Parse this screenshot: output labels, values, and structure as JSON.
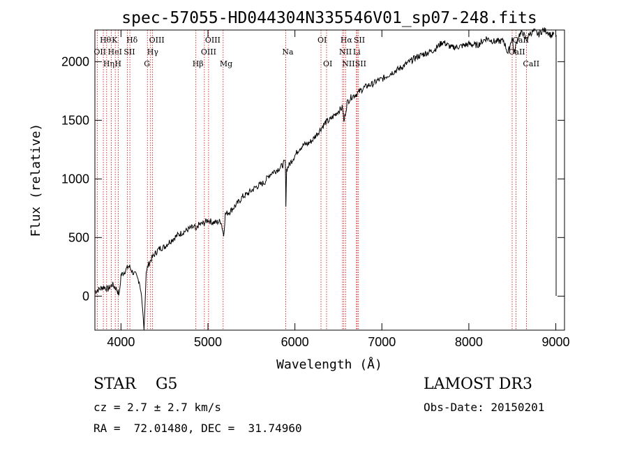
{
  "chart_data": {
    "type": "line",
    "title": "spec-57055-HD044304N335546V01_sp07-248.fits",
    "xlabel": "Wavelength (Å)",
    "ylabel": "Flux (relative)",
    "xlim": [
      3700,
      9100
    ],
    "ylim": [
      -290,
      2270
    ],
    "xticks": [
      4000,
      5000,
      6000,
      7000,
      8000,
      9000
    ],
    "yticks": [
      0,
      500,
      1000,
      1500,
      2000
    ],
    "series": [
      {
        "name": "spectrum",
        "x": [
          3700,
          3750,
          3800,
          3850,
          3900,
          3950,
          3980,
          4000,
          4030,
          4060,
          4090,
          4100,
          4130,
          4150,
          4170,
          4190,
          4210,
          4230,
          4250,
          4265,
          4275,
          4290,
          4310,
          4330,
          4350,
          4380,
          4420,
          4450,
          4500,
          4550,
          4600,
          4650,
          4700,
          4750,
          4800,
          4850,
          4861,
          4880,
          4900,
          4950,
          5000,
          5050,
          5100,
          5150,
          5180,
          5200,
          5250,
          5300,
          5350,
          5400,
          5450,
          5500,
          5550,
          5600,
          5650,
          5700,
          5750,
          5800,
          5850,
          5890,
          5896,
          5905,
          5950,
          6000,
          6050,
          6100,
          6150,
          6200,
          6250,
          6300,
          6350,
          6400,
          6450,
          6500,
          6550,
          6563,
          6580,
          6600,
          6650,
          6700,
          6750,
          6800,
          6850,
          6900,
          6950,
          7000,
          7100,
          7200,
          7300,
          7400,
          7500,
          7600,
          7700,
          7800,
          7900,
          8000,
          8100,
          8200,
          8300,
          8400,
          8450,
          8498,
          8520,
          8542,
          8580,
          8620,
          8662,
          8700,
          8750,
          8800,
          8850,
          8900,
          8950,
          8980
        ],
        "values": [
          40,
          60,
          80,
          60,
          100,
          60,
          10,
          180,
          200,
          230,
          255,
          250,
          210,
          190,
          180,
          150,
          130,
          40,
          -120,
          -290,
          -100,
          200,
          260,
          290,
          320,
          350,
          390,
          410,
          420,
          460,
          490,
          520,
          540,
          560,
          580,
          590,
          540,
          600,
          610,
          620,
          650,
          630,
          630,
          640,
          520,
          700,
          720,
          760,
          800,
          850,
          870,
          900,
          930,
          950,
          970,
          1030,
          1060,
          1080,
          1110,
          1150,
          790,
          1080,
          1140,
          1200,
          1260,
          1290,
          1300,
          1330,
          1380,
          1430,
          1480,
          1500,
          1540,
          1580,
          1610,
          1480,
          1560,
          1650,
          1700,
          1720,
          1750,
          1780,
          1800,
          1810,
          1840,
          1850,
          1900,
          1940,
          1990,
          2040,
          2070,
          2100,
          2170,
          2120,
          2130,
          2150,
          2140,
          2200,
          2170,
          2180,
          2070,
          2210,
          2060,
          2150,
          2230,
          2250,
          2180,
          2240,
          2260,
          2230,
          2270,
          2260,
          2220,
          2240
        ]
      }
    ],
    "emission_lines": [
      {
        "label": "Hθ",
        "wave": 3797,
        "row": 0
      },
      {
        "label": "OII",
        "wave": 3727,
        "row": 1
      },
      {
        "label": "Hη",
        "wave": 3835,
        "row": 2
      },
      {
        "label": "HeI",
        "wave": 3889,
        "row": 1
      },
      {
        "label": "K",
        "wave": 3934,
        "row": 0
      },
      {
        "label": "H",
        "wave": 3968,
        "row": 2
      },
      {
        "label": "SII",
        "wave": 4072,
        "row": 1
      },
      {
        "label": "Hδ",
        "wave": 4102,
        "row": 0
      },
      {
        "label": "OIII",
        "wave": 4363,
        "row": 0
      },
      {
        "label": "Hγ",
        "wave": 4340,
        "row": 1
      },
      {
        "label": "G",
        "wave": 4304,
        "row": 2
      },
      {
        "label": "Hβ",
        "wave": 4861,
        "row": 2
      },
      {
        "label": "OIII",
        "wave": 5007,
        "row": 0
      },
      {
        "label": "OIII",
        "wave": 4959,
        "row": 1
      },
      {
        "label": "Mg",
        "wave": 5175,
        "row": 2
      },
      {
        "label": "Na",
        "wave": 5894,
        "row": 1
      },
      {
        "label": "OI",
        "wave": 6300,
        "row": 0
      },
      {
        "label": "OI",
        "wave": 6364,
        "row": 2
      },
      {
        "label": "Hα",
        "wave": 6563,
        "row": 0
      },
      {
        "label": "SII",
        "wave": 6716,
        "row": 0
      },
      {
        "label": "NII",
        "wave": 6548,
        "row": 1
      },
      {
        "label": "Li",
        "wave": 6708,
        "row": 1
      },
      {
        "label": "NII",
        "wave": 6583,
        "row": 2
      },
      {
        "label": "SII",
        "wave": 6731,
        "row": 2
      },
      {
        "label": "CaII",
        "wave": 8542,
        "row": 0
      },
      {
        "label": "CaII",
        "wave": 8498,
        "row": 1
      },
      {
        "label": "CaII",
        "wave": 8662,
        "row": 2
      }
    ],
    "colors": {
      "line": "#000000",
      "marker": "#cc0000",
      "axes": "#000000"
    }
  },
  "footer": {
    "class_label": "STAR    G5",
    "survey": "LAMOST DR3",
    "redshift": "cz = 2.7 ± 2.7 km/s",
    "obs_date": "Obs-Date: 20150201",
    "coords": "RA =  72.01480, DEC =  31.74960"
  }
}
